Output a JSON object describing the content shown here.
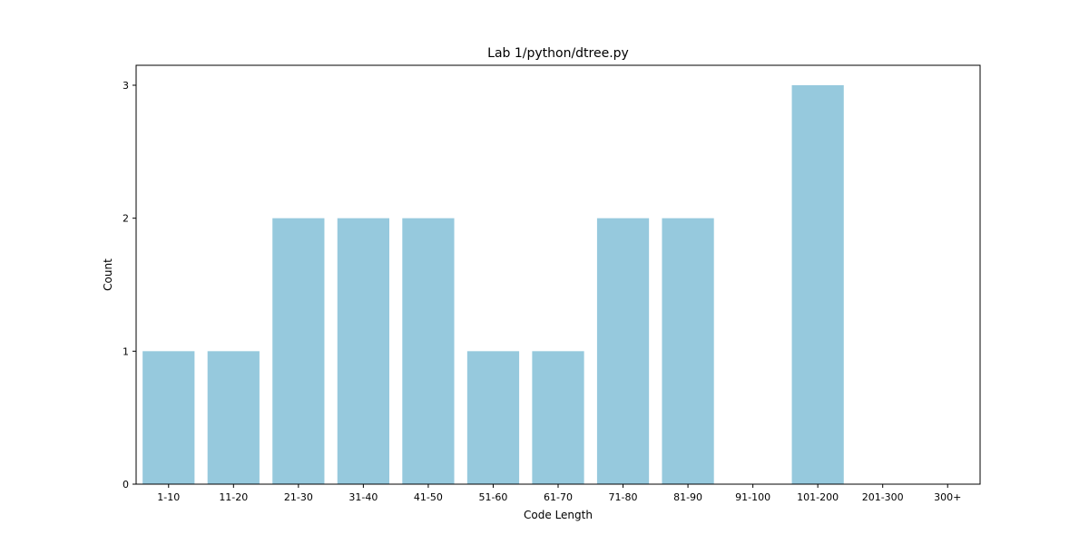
{
  "chart_data": {
    "type": "bar",
    "title": "Lab 1/python/dtree.py",
    "xlabel": "Code Length",
    "ylabel": "Count",
    "categories": [
      "1-10",
      "11-20",
      "21-30",
      "31-40",
      "41-50",
      "51-60",
      "61-70",
      "71-80",
      "81-90",
      "91-100",
      "101-200",
      "201-300",
      "300+"
    ],
    "values": [
      1,
      1,
      2,
      2,
      2,
      1,
      1,
      2,
      2,
      0,
      3,
      0,
      0
    ],
    "ylim": [
      0,
      3.15
    ],
    "yticks": [
      0,
      1,
      2,
      3
    ],
    "grid": false,
    "bar_color": "#96c9dd"
  }
}
